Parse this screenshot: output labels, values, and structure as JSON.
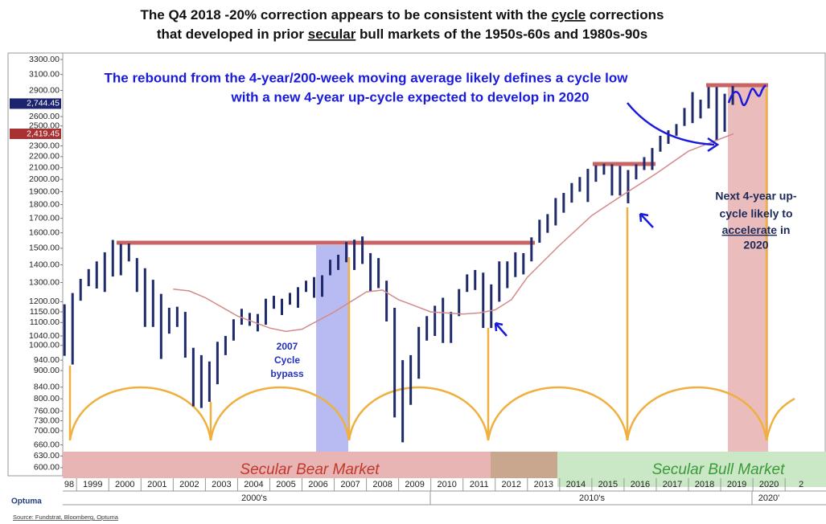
{
  "chart_data": {
    "type": "hilo",
    "title": {
      "line1": [
        "The Q4 2018 -20% correction appears to be consistent with the ",
        "cycle",
        " corrections"
      ],
      "line2": [
        "that developed in prior ",
        "secular",
        " bull markets of the 1950s-60s and 1980s-90s"
      ]
    },
    "annotations": {
      "rebound": [
        "The rebound from the 4-year/200-week moving average likely defines a cycle low",
        "with a new 4-year up-cycle expected to develop in 2020"
      ],
      "bypass": [
        "2007",
        "Cycle",
        "bypass"
      ],
      "next": [
        "Next 4-year up-",
        "cycle likely to",
        "accelerate",
        " in",
        "2020"
      ],
      "bear": "Secular Bear Market",
      "bull": "Secular Bull Market",
      "source": "Source: Fundstrat, Bloomberg, Optuma",
      "logo": "Optuma"
    },
    "decade_labels": [
      "2000's",
      "2010's",
      "2020'"
    ],
    "color": "#1f2a6b",
    "x": [
      1998.625,
      1998.875,
      1999.125,
      1999.375,
      1999.625,
      1999.875,
      2000.125,
      2000.375,
      2000.625,
      2000.875,
      2001.125,
      2001.375,
      2001.625,
      2001.875,
      2002.125,
      2002.375,
      2002.625,
      2002.875,
      2003.125,
      2003.375,
      2003.625,
      2003.875,
      2004.125,
      2004.375,
      2004.625,
      2004.875,
      2005.125,
      2005.375,
      2005.625,
      2005.875,
      2006.125,
      2006.375,
      2006.625,
      2006.875,
      2007.125,
      2007.375,
      2007.625,
      2007.875,
      2008.125,
      2008.375,
      2008.625,
      2008.875,
      2009.125,
      2009.375,
      2009.625,
      2009.875,
      2010.125,
      2010.375,
      2010.625,
      2010.875,
      2011.125,
      2011.375,
      2011.625,
      2011.875,
      2012.125,
      2012.375,
      2012.625,
      2012.875,
      2013.125,
      2013.375,
      2013.625,
      2013.875,
      2014.125,
      2014.375,
      2014.625,
      2014.875,
      2015.125,
      2015.375,
      2015.625,
      2015.875,
      2016.125,
      2016.375,
      2016.625,
      2016.875,
      2017.125,
      2017.375,
      2017.625,
      2017.875,
      2018.125,
      2018.375,
      2018.625,
      2018.875,
      2019.125,
      2019.375
    ],
    "lows": [
      957,
      923,
      1205,
      1280,
      1268,
      1250,
      1333,
      1340,
      1420,
      1250,
      1080,
      1080,
      945,
      1050,
      1080,
      950,
      775,
      770,
      790,
      850,
      960,
      1020,
      1090,
      1085,
      1060,
      1090,
      1165,
      1135,
      1185,
      1170,
      1250,
      1220,
      1225,
      1340,
      1370,
      1415,
      1370,
      1405,
      1255,
      1270,
      1105,
      740,
      667,
      780,
      870,
      1020,
      1040,
      1010,
      1010,
      1130,
      1250,
      1260,
      1075,
      1075,
      1200,
      1270,
      1330,
      1345,
      1420,
      1535,
      1600,
      1650,
      1740,
      1815,
      1900,
      1820,
      1980,
      2040,
      1870,
      1870,
      1810,
      2000,
      2080,
      2080,
      2245,
      2320,
      2400,
      2500,
      2530,
      2580,
      2690,
      2350,
      2440,
      2730
    ],
    "highs": [
      1187,
      1244,
      1320,
      1375,
      1420,
      1475,
      1553,
      1527,
      1530,
      1440,
      1380,
      1315,
      1240,
      1170,
      1175,
      1150,
      990,
      960,
      935,
      1015,
      1040,
      1115,
      1165,
      1145,
      1140,
      1215,
      1230,
      1215,
      1245,
      1275,
      1310,
      1330,
      1340,
      1430,
      1460,
      1540,
      1555,
      1576,
      1470,
      1440,
      1310,
      1170,
      940,
      960,
      1080,
      1130,
      1180,
      1220,
      1150,
      1265,
      1345,
      1370,
      1355,
      1290,
      1420,
      1420,
      1475,
      1470,
      1570,
      1690,
      1730,
      1850,
      1890,
      1970,
      2020,
      2090,
      2120,
      2135,
      2130,
      2115,
      2080,
      2130,
      2195,
      2280,
      2400,
      2455,
      2520,
      2695,
      2880,
      2790,
      2940,
      2940,
      2860,
      2955
    ],
    "ma": {
      "color": "#d48a8a",
      "x": [
        2002,
        2002.5,
        2003,
        2004,
        2005,
        2005.5,
        2006,
        2007,
        2008,
        2008.5,
        2009,
        2010,
        2011,
        2011.5,
        2012,
        2012.5,
        2013,
        2014,
        2015,
        2016,
        2017,
        2018,
        2019.4
      ],
      "values": [
        1265,
        1255,
        1220,
        1130,
        1075,
        1060,
        1070,
        1150,
        1250,
        1260,
        1210,
        1150,
        1140,
        1145,
        1160,
        1210,
        1330,
        1520,
        1720,
        1880,
        2050,
        2250,
        2420
      ]
    },
    "log_y": true,
    "xlim": [
      1998.57,
      2022.27
    ],
    "ylim": [
      580,
      3390
    ],
    "xticks": [
      {
        "value": 1998,
        "label": "98"
      },
      1999,
      2000,
      2001,
      2002,
      2003,
      2004,
      2005,
      2006,
      2007,
      2008,
      2009,
      2010,
      2011,
      2012,
      2013,
      2014,
      2015,
      2016,
      2017,
      2018,
      2019,
      2020,
      {
        "value": 2021,
        "label": "2"
      }
    ],
    "yticks": [
      {
        "value": 600,
        "label": "600.00"
      },
      {
        "value": 630,
        "label": "630.00"
      },
      {
        "value": 660,
        "label": "660.00"
      },
      {
        "value": 700,
        "label": "700.00"
      },
      {
        "value": 730,
        "label": "730.00"
      },
      {
        "value": 760,
        "label": "760.00"
      },
      {
        "value": 800,
        "label": "800.00"
      },
      {
        "value": 840,
        "label": "840.00"
      },
      {
        "value": 900,
        "label": "900.00"
      },
      {
        "value": 940,
        "label": "940.00"
      },
      {
        "value": 1000,
        "label": "1000.00"
      },
      {
        "value": 1040,
        "label": "1040.00"
      },
      {
        "value": 1100,
        "label": "1100.00"
      },
      {
        "value": 1150,
        "label": "1150.00"
      },
      {
        "value": 1200,
        "label": "1200.00"
      },
      {
        "value": 1300,
        "label": "1300.00"
      },
      {
        "value": 1400,
        "label": "1400.00"
      },
      {
        "value": 1500,
        "label": "1500.00"
      },
      {
        "value": 1600,
        "label": "1600.00"
      },
      {
        "value": 1700,
        "label": "1700.00"
      },
      {
        "value": 1800,
        "label": "1800.00"
      },
      {
        "value": 1900,
        "label": "1900.00"
      },
      {
        "value": 2000,
        "label": "2000.00"
      },
      {
        "value": 2100,
        "label": "2100.00"
      },
      {
        "value": 2200,
        "label": "2200.00"
      },
      {
        "value": 2300,
        "label": "2300.00"
      },
      {
        "value": 2500,
        "label": "2500.00"
      },
      {
        "value": 2600,
        "label": "2600.00"
      },
      {
        "value": 2900,
        "label": "2900.00"
      },
      {
        "value": 3100,
        "label": "3100.00"
      },
      {
        "value": 3300,
        "label": "3300.00"
      }
    ],
    "price_markers": [
      {
        "value": 2744.45,
        "label": "2,744.45",
        "color": "#1c2470"
      },
      {
        "value": 2419.45,
        "label": "2,419.45",
        "color": "#a83232"
      }
    ]
  }
}
